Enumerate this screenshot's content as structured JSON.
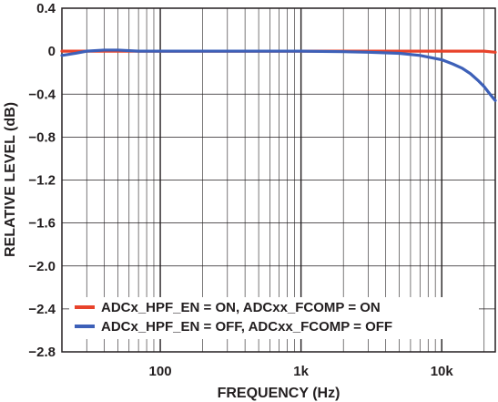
{
  "chart_data": {
    "type": "line",
    "title": "",
    "xlabel": "FREQUENCY (Hz)",
    "ylabel": "RELATIVE LEVEL (dB)",
    "xscale": "log",
    "xlim": [
      20,
      24000
    ],
    "ylim": [
      -2.8,
      0.4
    ],
    "xticks": [
      {
        "value": 100,
        "label": "100"
      },
      {
        "value": 1000,
        "label": "1k"
      },
      {
        "value": 10000,
        "label": "10k"
      }
    ],
    "yticks": [
      {
        "value": 0.4,
        "label": "0.4"
      },
      {
        "value": 0,
        "label": "0"
      },
      {
        "value": -0.4,
        "label": "−0.4"
      },
      {
        "value": -0.8,
        "label": "−0.8"
      },
      {
        "value": -1.2,
        "label": "−1.2"
      },
      {
        "value": -1.6,
        "label": "−1.6"
      },
      {
        "value": -2.0,
        "label": "−2.0"
      },
      {
        "value": -2.4,
        "label": "−2.4"
      },
      {
        "value": -2.8,
        "label": "−2.8"
      }
    ],
    "grid": true,
    "legend_position": "bottom-left",
    "series": [
      {
        "name": "ADCx_HPF_EN = ON, ADCxx_FCOMP = ON",
        "color": "#e8432b",
        "x": [
          20,
          30,
          50,
          100,
          200,
          500,
          1000,
          2000,
          5000,
          10000,
          15000,
          20000,
          24000
        ],
        "y": [
          0.0,
          0.0,
          0.0,
          0.0,
          0.0,
          0.0,
          0.0,
          0.0,
          0.0,
          0.0,
          0.0,
          0.0,
          -0.01
        ]
      },
      {
        "name": "ADCx_HPF_EN = OFF, ADCxx_FCOMP = OFF",
        "color": "#3d60b8",
        "x": [
          20,
          25,
          30,
          40,
          50,
          70,
          100,
          200,
          500,
          1000,
          2000,
          3000,
          5000,
          7000,
          10000,
          12000,
          14000,
          16000,
          18000,
          20000,
          22000,
          24000
        ],
        "y": [
          -0.04,
          -0.02,
          0.0,
          0.01,
          0.01,
          0.0,
          0.0,
          0.0,
          0.0,
          0.0,
          -0.005,
          -0.01,
          -0.02,
          -0.04,
          -0.08,
          -0.12,
          -0.16,
          -0.21,
          -0.27,
          -0.33,
          -0.4,
          -0.46
        ]
      }
    ]
  }
}
